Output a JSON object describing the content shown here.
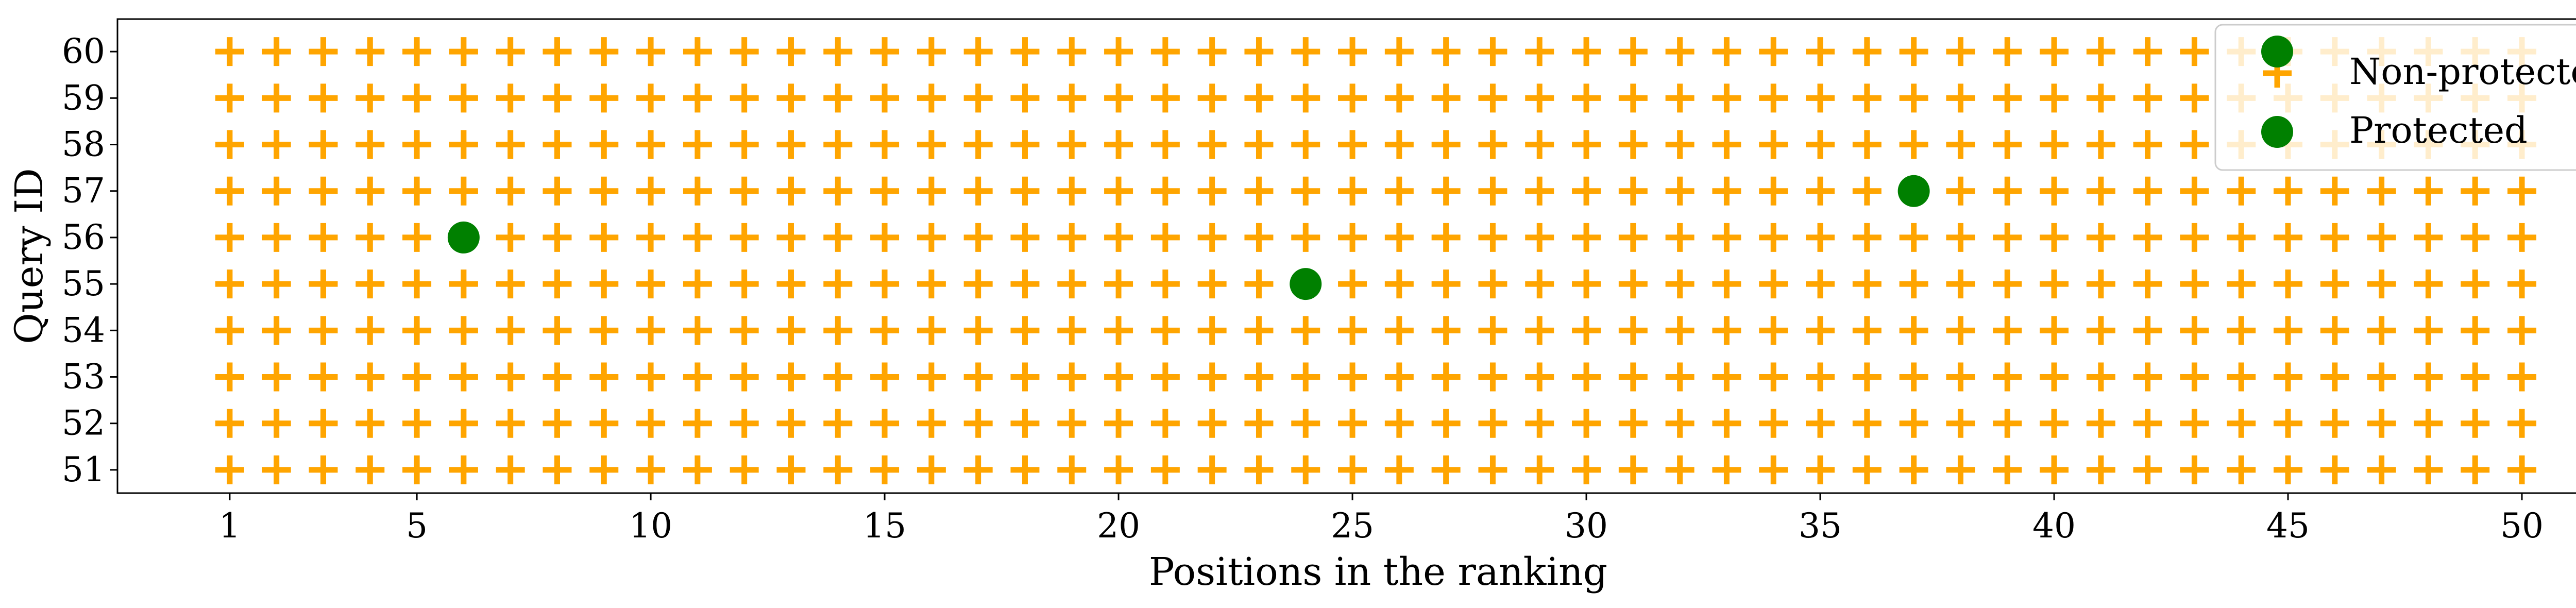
{
  "chart_data": {
    "type": "scatter",
    "title": "",
    "xlabel": "Positions in the ranking",
    "ylabel": "Query ID",
    "xlim": [
      -1.4,
      52.5
    ],
    "ylim": [
      50.5,
      60.7
    ],
    "xticks": [
      1,
      5,
      10,
      15,
      20,
      25,
      30,
      35,
      40,
      45,
      50
    ],
    "yticks": [
      51,
      52,
      53,
      54,
      55,
      56,
      57,
      58,
      59,
      60
    ],
    "positions": {
      "start": 1,
      "end": 50
    },
    "queries": [
      51,
      52,
      53,
      54,
      55,
      56,
      57,
      58,
      59,
      60
    ],
    "grid": false,
    "legend_position": "top-right",
    "series": [
      {
        "name": "Non-protected",
        "marker": "plus",
        "color": "#FFA500"
      },
      {
        "name": "Protected",
        "marker": "circle",
        "color": "#008000",
        "points": [
          {
            "x": 6,
            "y": 56
          },
          {
            "x": 24,
            "y": 55
          },
          {
            "x": 37,
            "y": 57
          }
        ]
      }
    ]
  }
}
